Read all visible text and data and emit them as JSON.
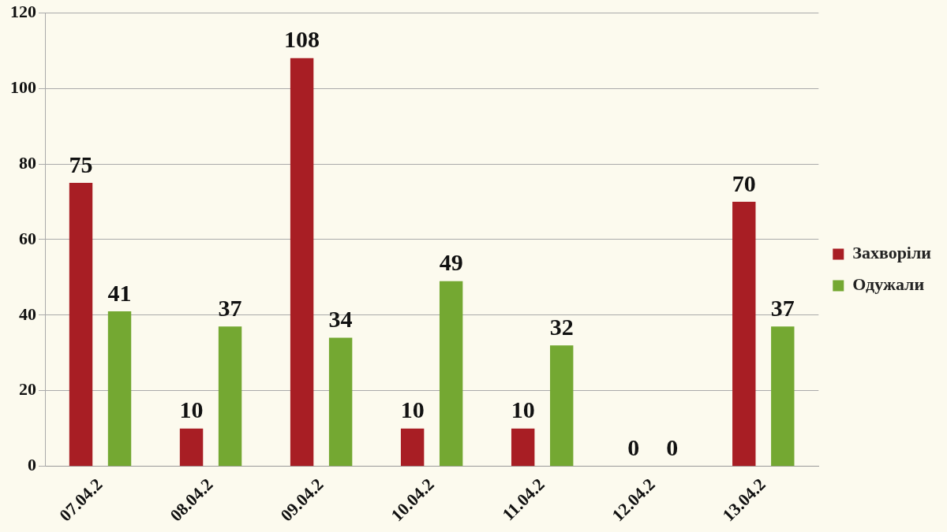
{
  "chart_data": {
    "type": "bar",
    "categories": [
      "07.04.2",
      "08.04.2",
      "09.04.2",
      "10.04.2",
      "11.04.2",
      "12.04.2",
      "13.04.2"
    ],
    "series": [
      {
        "name": "Захворіли",
        "color": "#a81e24",
        "values": [
          75,
          10,
          108,
          10,
          10,
          0,
          70
        ]
      },
      {
        "name": "Одужали",
        "color": "#74a832",
        "values": [
          41,
          37,
          34,
          49,
          32,
          0,
          37
        ]
      }
    ],
    "ylim": [
      0,
      120
    ],
    "yticks": [
      0,
      20,
      40,
      60,
      80,
      100,
      120
    ],
    "grid": "y",
    "legend": "right",
    "data_labels": true
  }
}
